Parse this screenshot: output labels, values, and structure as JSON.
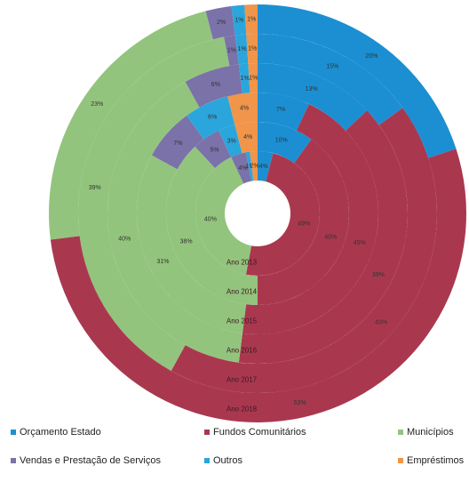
{
  "chart_data": {
    "type": "multi-doughnut",
    "categories": [
      "Ano 2013",
      "Ano 2014",
      "Ano 2015",
      "Ano 2016",
      "Ano 2017",
      "Ano 2018"
    ],
    "series": [
      {
        "name": "Orçamento Estado",
        "color": "#1b8fd2",
        "values": [
          4,
          10,
          7,
          13,
          15,
          20
        ],
        "value_labels": [
          "4%",
          "10%",
          "7%",
          "13%",
          "15%",
          "20%"
        ]
      },
      {
        "name": "Fundos Comunitários",
        "color": "#a9384f",
        "values": [
          49,
          40,
          45,
          39,
          43,
          53
        ],
        "value_labels": [
          "49%",
          "40%",
          "45%",
          "39%",
          "43%",
          "53%"
        ]
      },
      {
        "name": "Municípios",
        "color": "#93c47d",
        "values": [
          40,
          38,
          31,
          40,
          39,
          23
        ],
        "value_labels": [
          "40%",
          "38%",
          "31%",
          "40%",
          "39%",
          "23%"
        ]
      },
      {
        "name": "Vendas e Prestação de Serviços",
        "color": "#7b72a9",
        "values": [
          4,
          5,
          7,
          6,
          1,
          2
        ],
        "value_labels": [
          "4%",
          "5%",
          "7%",
          "6%",
          "1%",
          "2%"
        ]
      },
      {
        "name": "Outros",
        "color": "#2aa6dc",
        "values": [
          1,
          3,
          6,
          1,
          1,
          1
        ],
        "value_labels": [
          "1%",
          "3%",
          "6%",
          "1%",
          "1%",
          "1%"
        ]
      },
      {
        "name": "Empréstimos",
        "color": "#f0954a",
        "values": [
          2,
          4,
          4,
          1,
          1,
          1
        ],
        "value_labels": [
          "2%",
          "4%",
          "4%",
          "1%",
          "1%",
          "1%"
        ]
      }
    ]
  }
}
